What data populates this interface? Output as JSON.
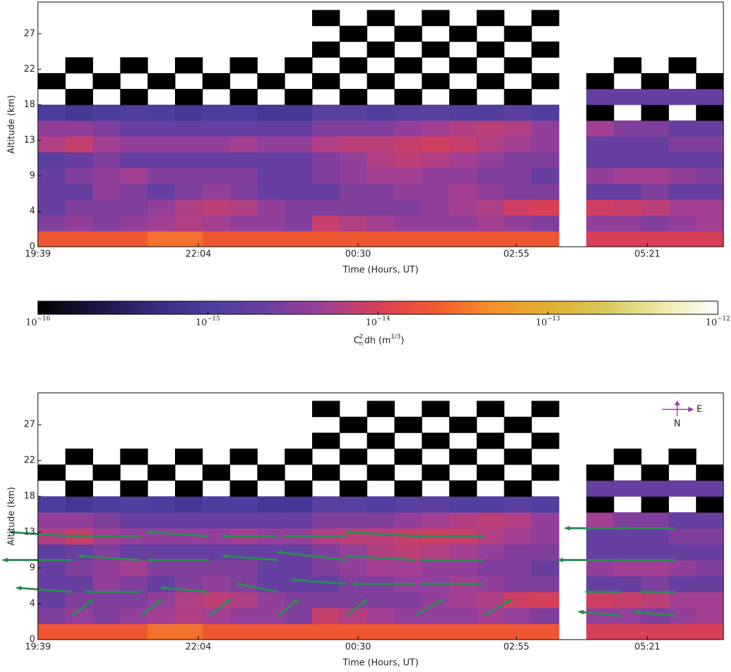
{
  "chart_data": {
    "type": "heatmap",
    "xlabel": "Time (Hours, UT)",
    "ylabel": "Altitude (km)",
    "xlim": [
      0,
      100
    ],
    "xticks": [
      {
        "value": 0,
        "label": "19:39"
      },
      {
        "value": 23.4,
        "label": "22:04"
      },
      {
        "value": 46.7,
        "label": "00:30"
      },
      {
        "value": 69.8,
        "label": "02:55"
      },
      {
        "value": 88.9,
        "label": "05:21"
      }
    ],
    "ylim": [
      0,
      31
    ],
    "yticks": [
      0,
      {
        "value": 4.5,
        "label": "4"
      },
      9,
      {
        "value": 13.5,
        "label": "13"
      },
      18,
      {
        "value": 22.5,
        "label": "22"
      },
      27
    ],
    "x_edges": [
      0,
      4,
      8,
      12,
      16,
      20,
      24,
      28,
      32,
      36,
      40,
      44,
      48,
      52,
      56,
      60,
      64,
      68,
      72,
      76,
      80,
      84,
      88,
      92,
      96,
      100
    ],
    "y_edges": [
      0,
      2,
      4,
      6,
      8,
      10,
      12,
      14,
      16,
      18,
      20,
      22,
      24,
      26,
      28,
      30
    ],
    "z": [
      [
        2e-14,
        2e-14,
        2e-14,
        2e-14,
        3e-14,
        3e-14,
        2e-14,
        2e-14,
        2e-14,
        2e-14,
        2e-14,
        2e-14,
        2e-14,
        2e-14,
        2e-14,
        2e-14,
        2e-14,
        2e-14,
        2e-14,
        null,
        1e-14,
        1e-14,
        1e-14,
        1e-14,
        1e-14
      ],
      [
        3e-15,
        4e-15,
        3e-15,
        4e-15,
        5e-15,
        6e-15,
        5e-15,
        4e-15,
        4e-15,
        3e-15,
        8e-15,
        6e-15,
        5e-15,
        4e-15,
        4e-15,
        4e-15,
        5e-15,
        4e-15,
        3e-15,
        null,
        4e-15,
        4e-15,
        3e-15,
        4e-15,
        5e-15
      ],
      [
        2e-15,
        3e-15,
        3e-15,
        3e-15,
        4e-15,
        6e-15,
        7e-15,
        6e-15,
        4e-15,
        3e-15,
        3e-15,
        3e-15,
        3e-15,
        3e-15,
        4e-15,
        5e-15,
        6e-15,
        9e-15,
        1e-14,
        null,
        9e-15,
        8e-15,
        7e-15,
        5e-15,
        5e-15
      ],
      [
        2e-15,
        2e-15,
        4e-15,
        3e-15,
        2e-15,
        3e-15,
        4e-15,
        3e-15,
        2e-15,
        2e-15,
        2e-15,
        3e-15,
        3e-15,
        4e-15,
        4e-15,
        5e-15,
        4e-15,
        3e-15,
        3e-15,
        null,
        2e-15,
        2e-15,
        3e-15,
        2e-15,
        2e-15
      ],
      [
        2e-15,
        3e-15,
        4e-15,
        5e-15,
        3e-15,
        3e-15,
        3e-15,
        3e-15,
        2e-15,
        2e-15,
        3e-15,
        4e-15,
        5e-15,
        5e-15,
        4e-15,
        4e-15,
        3e-15,
        3e-15,
        2e-15,
        null,
        4e-15,
        5e-15,
        5e-15,
        4e-15,
        3e-15
      ],
      [
        1.5e-15,
        2e-15,
        3e-15,
        2e-15,
        2e-15,
        2e-15,
        2e-15,
        2e-15,
        2e-15,
        2e-15,
        3e-15,
        4e-15,
        6e-15,
        7e-15,
        6e-15,
        5e-15,
        4e-15,
        3e-15,
        3e-15,
        null,
        2e-15,
        2e-15,
        2e-15,
        2e-15,
        2e-15
      ],
      [
        6e-15,
        8e-15,
        5e-15,
        4e-15,
        4e-15,
        4e-15,
        4e-15,
        5e-15,
        4e-15,
        4e-15,
        6e-15,
        7e-15,
        7e-15,
        8e-15,
        9e-15,
        8e-15,
        6e-15,
        5e-15,
        4e-15,
        null,
        2e-15,
        2e-15,
        2e-15,
        3e-15,
        3e-15
      ],
      [
        4e-15,
        4e-15,
        3e-15,
        2e-15,
        2e-15,
        2e-15,
        2e-15,
        2e-15,
        2e-15,
        2e-15,
        3e-15,
        3e-15,
        3e-15,
        4e-15,
        5e-15,
        6e-15,
        7e-15,
        6e-15,
        4e-15,
        null,
        5e-15,
        3e-15,
        3e-15,
        2e-15,
        2e-15
      ],
      [
        1e-15,
        8e-16,
        1e-15,
        1.2e-15,
        1e-15,
        8e-16,
        1e-15,
        1e-15,
        8e-16,
        8e-16,
        1.5e-15,
        1.5e-15,
        1.2e-15,
        1.5e-15,
        1.5e-15,
        1.2e-15,
        1.2e-15,
        1.5e-15,
        1.2e-15,
        null,
        1e-16,
        null,
        1e-16,
        null,
        1e-16
      ],
      [
        null,
        1e-16,
        null,
        1e-16,
        null,
        1e-16,
        null,
        1e-16,
        null,
        1e-16,
        null,
        1e-16,
        null,
        1e-16,
        null,
        1e-16,
        null,
        1e-16,
        null,
        null,
        2e-15,
        2e-15,
        2e-15,
        2e-15,
        2e-15
      ],
      [
        1e-16,
        null,
        1e-16,
        null,
        1e-16,
        null,
        1e-16,
        null,
        1e-16,
        null,
        1e-16,
        null,
        1e-16,
        null,
        1e-16,
        null,
        1e-16,
        null,
        1e-16,
        null,
        1e-16,
        null,
        1e-16,
        null,
        1e-16
      ],
      [
        null,
        1e-16,
        null,
        1e-16,
        null,
        1e-16,
        null,
        1e-16,
        null,
        1e-16,
        null,
        1e-16,
        null,
        1e-16,
        null,
        1e-16,
        null,
        1e-16,
        null,
        null,
        null,
        1e-16,
        null,
        1e-16,
        null
      ],
      [
        null,
        null,
        null,
        null,
        null,
        null,
        null,
        null,
        null,
        null,
        1e-16,
        null,
        1e-16,
        null,
        1e-16,
        null,
        1e-16,
        null,
        1e-16,
        null,
        null,
        null,
        null,
        null,
        null
      ],
      [
        null,
        null,
        null,
        null,
        null,
        null,
        null,
        null,
        null,
        null,
        null,
        1e-16,
        null,
        1e-16,
        null,
        1e-16,
        null,
        1e-16,
        null,
        null,
        null,
        null,
        null,
        null,
        null
      ],
      [
        null,
        null,
        null,
        null,
        null,
        null,
        null,
        null,
        null,
        null,
        1e-16,
        null,
        1e-16,
        null,
        1e-16,
        null,
        1e-16,
        null,
        1e-16,
        null,
        null,
        null,
        null,
        null,
        null
      ]
    ],
    "colorbar": {
      "log": true,
      "lim": [
        1e-16,
        1e-12
      ],
      "ticks": [
        {
          "value": 1e-16,
          "label": "10",
          "exponent": "−16"
        },
        {
          "value": 1e-15,
          "label": "10",
          "exponent": "−15"
        },
        {
          "value": 1e-14,
          "label": "10",
          "exponent": "−14"
        },
        {
          "value": 1e-13,
          "label": "10",
          "exponent": "−13"
        },
        {
          "value": 1e-12,
          "label": "10",
          "exponent": "−12"
        }
      ],
      "colors": [
        "#000000",
        "#1c1440",
        "#342a7a",
        "#4b3e9e",
        "#6a3fa0",
        "#9c3f98",
        "#d8405a",
        "#f25a2e",
        "#f5902a",
        "#e0b030",
        "#d6c85a",
        "#eee8a8",
        "#ffffff"
      ],
      "label": {
        "symbol": "C",
        "sub": "n",
        "sup": "2",
        "text": "dh (m",
        "unit_sup": "1/3",
        "end": ")"
      }
    },
    "vectors": {
      "color": "#2e8b57",
      "x": [
        5,
        15,
        25,
        35,
        5,
        15,
        25,
        35,
        5,
        15,
        25,
        35,
        5,
        15,
        25,
        35,
        45,
        55,
        65,
        45,
        55,
        65,
        45,
        55,
        65,
        45,
        55,
        65,
        85,
        93,
        85,
        93,
        85,
        93,
        85,
        93
      ],
      "y": [
        3,
        3,
        3,
        3,
        6,
        6,
        6,
        6,
        10,
        10,
        10,
        10,
        13,
        13,
        13,
        13,
        3,
        3,
        3,
        7,
        7,
        7,
        10,
        10,
        10,
        13,
        13,
        13,
        3,
        3,
        6,
        6,
        10,
        10,
        14,
        14
      ],
      "u": [
        3,
        3,
        3,
        3,
        -8,
        -8,
        -7,
        -6,
        -10,
        -9,
        -9,
        -8,
        -9,
        -10,
        -9,
        -8,
        3,
        4,
        4,
        -8,
        -9,
        -9,
        -10,
        -10,
        -9,
        -9,
        -10,
        -10,
        -6,
        -6,
        -5,
        -5,
        -9,
        -9,
        -8,
        -8
      ],
      "v": [
        2,
        2,
        2,
        2,
        0.5,
        0,
        0.5,
        1,
        0,
        0.5,
        0,
        0.5,
        0.5,
        0,
        0.5,
        0,
        2,
        2,
        2,
        0.5,
        0,
        0,
        1,
        0.5,
        0,
        0,
        0.5,
        0,
        0.5,
        0.5,
        0,
        0,
        0,
        0,
        0,
        0
      ]
    },
    "compass": {
      "east": "E",
      "north": "N",
      "color": "#9b3fb0"
    }
  }
}
